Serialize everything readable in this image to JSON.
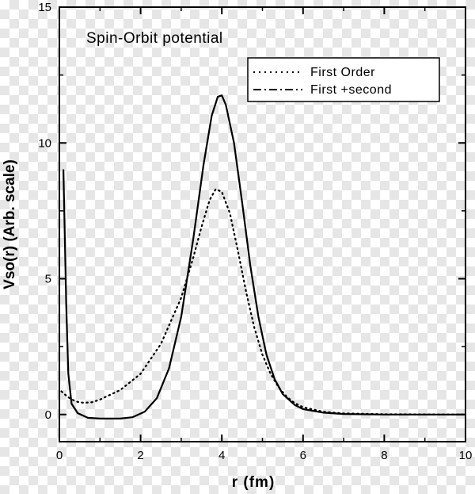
{
  "chart_data": {
    "type": "line",
    "title": "Spin-Orbit potential",
    "xlabel": "r (fm)",
    "ylabel": "Vso(r) (Arb. scale)",
    "xlim": [
      0,
      10
    ],
    "ylim": [
      -1,
      15
    ],
    "x_ticks": [
      "0",
      "2",
      "4",
      "6",
      "8",
      "10"
    ],
    "y_ticks": [
      "0",
      "5",
      "10",
      "15"
    ],
    "grid": false,
    "legend_position": "top-right",
    "series": [
      {
        "name": "First Order",
        "style": "dotted",
        "color": "#000000",
        "points": [
          [
            0.05,
            0.85
          ],
          [
            0.2,
            0.65
          ],
          [
            0.4,
            0.48
          ],
          [
            0.6,
            0.43
          ],
          [
            0.8,
            0.45
          ],
          [
            1.0,
            0.55
          ],
          [
            1.5,
            0.9
          ],
          [
            2.0,
            1.5
          ],
          [
            2.5,
            2.6
          ],
          [
            3.0,
            4.3
          ],
          [
            3.3,
            5.8
          ],
          [
            3.5,
            6.9
          ],
          [
            3.7,
            7.9
          ],
          [
            3.85,
            8.3
          ],
          [
            4.0,
            8.2
          ],
          [
            4.2,
            7.4
          ],
          [
            4.4,
            6.0
          ],
          [
            4.6,
            4.5
          ],
          [
            4.8,
            3.2
          ],
          [
            5.0,
            2.2
          ],
          [
            5.2,
            1.5
          ],
          [
            5.4,
            1.0
          ],
          [
            5.6,
            0.65
          ],
          [
            5.8,
            0.42
          ],
          [
            6.0,
            0.27
          ],
          [
            6.5,
            0.1
          ],
          [
            7.0,
            0.04
          ],
          [
            8.0,
            0.01
          ],
          [
            10.0,
            0.0
          ]
        ]
      },
      {
        "name": "First +second",
        "style": "solid",
        "color": "#000000",
        "points": [
          [
            0.1,
            9.0
          ],
          [
            0.17,
            4.0
          ],
          [
            0.22,
            1.5
          ],
          [
            0.3,
            0.4
          ],
          [
            0.45,
            0.05
          ],
          [
            0.7,
            -0.12
          ],
          [
            1.0,
            -0.15
          ],
          [
            1.5,
            -0.15
          ],
          [
            1.8,
            -0.1
          ],
          [
            2.1,
            0.1
          ],
          [
            2.4,
            0.6
          ],
          [
            2.7,
            1.7
          ],
          [
            3.0,
            3.6
          ],
          [
            3.3,
            6.5
          ],
          [
            3.55,
            9.2
          ],
          [
            3.75,
            11.0
          ],
          [
            3.9,
            11.7
          ],
          [
            4.0,
            11.75
          ],
          [
            4.1,
            11.4
          ],
          [
            4.3,
            10.0
          ],
          [
            4.5,
            7.8
          ],
          [
            4.7,
            5.5
          ],
          [
            4.9,
            3.6
          ],
          [
            5.1,
            2.2
          ],
          [
            5.3,
            1.3
          ],
          [
            5.5,
            0.75
          ],
          [
            5.8,
            0.35
          ],
          [
            6.0,
            0.2
          ],
          [
            6.5,
            0.07
          ],
          [
            7.0,
            0.02
          ],
          [
            8.0,
            0.0
          ],
          [
            10.0,
            0.0
          ]
        ]
      }
    ]
  }
}
